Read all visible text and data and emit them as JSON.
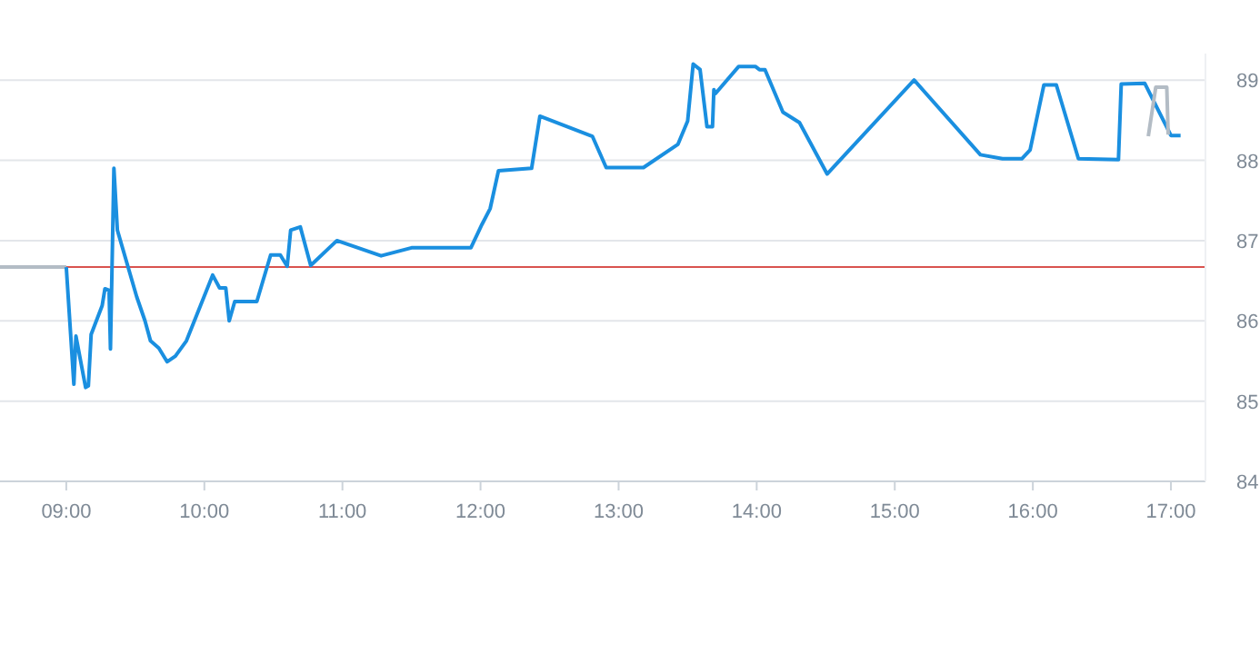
{
  "chart_data": {
    "type": "line",
    "xlim": [
      8.52,
      17.25
    ],
    "ylim": [
      84,
      89.33
    ],
    "xticks": [
      {
        "value": 9,
        "label": "09:00"
      },
      {
        "value": 10,
        "label": "10:00"
      },
      {
        "value": 11,
        "label": "11:00"
      },
      {
        "value": 12,
        "label": "12:00"
      },
      {
        "value": 13,
        "label": "13:00"
      },
      {
        "value": 14,
        "label": "14:00"
      },
      {
        "value": 15,
        "label": "15:00"
      },
      {
        "value": 16,
        "label": "16:00"
      },
      {
        "value": 17,
        "label": "17:00"
      }
    ],
    "yticks": [
      84,
      85,
      86,
      87,
      88,
      89
    ],
    "grid": "y",
    "marker": "none",
    "line_style": "solid",
    "ref_lines": [
      {
        "axis": "y",
        "value": 86.67,
        "color": "#d9534f"
      }
    ],
    "series": [
      {
        "color": "#b3bcc5",
        "x": [
          8.52,
          9.0
        ],
        "values": [
          86.67,
          86.67
        ]
      },
      {
        "color": "#1a8fe0",
        "x": [
          9.0,
          9.055,
          9.07,
          9.14,
          9.16,
          9.18,
          9.26,
          9.28,
          9.31,
          9.32,
          9.345,
          9.37,
          9.51,
          9.57,
          9.61,
          9.67,
          9.73,
          9.79,
          9.87,
          10.06,
          10.11,
          10.155,
          10.18,
          10.22,
          10.38,
          10.48,
          10.55,
          10.6,
          10.625,
          10.695,
          10.77,
          10.96,
          11.28,
          11.5,
          11.93,
          12.01,
          12.07,
          12.13,
          12.37,
          12.43,
          12.81,
          12.91,
          13.18,
          13.43,
          13.5,
          13.54,
          13.59,
          13.64,
          13.68,
          13.69,
          13.7,
          13.87,
          13.99,
          14.02,
          14.06,
          14.19,
          14.31,
          14.51,
          15.14,
          15.62,
          15.78,
          15.92,
          15.98,
          16.08,
          16.17,
          16.33,
          16.62,
          16.64,
          16.81,
          17.0,
          17.07
        ],
        "values": [
          86.67,
          85.21,
          85.81,
          85.17,
          85.19,
          85.83,
          86.19,
          86.4,
          86.38,
          85.65,
          87.9,
          87.13,
          86.3,
          86.0,
          85.75,
          85.66,
          85.49,
          85.56,
          85.75,
          86.57,
          86.41,
          86.41,
          86.0,
          86.24,
          86.24,
          86.82,
          86.82,
          86.68,
          87.13,
          87.17,
          86.69,
          87.0,
          86.81,
          86.91,
          86.91,
          87.2,
          87.4,
          87.87,
          87.9,
          88.55,
          88.3,
          87.91,
          87.91,
          88.2,
          88.49,
          89.2,
          89.13,
          88.42,
          88.42,
          88.88,
          88.83,
          89.17,
          89.17,
          89.13,
          89.13,
          88.6,
          88.47,
          87.83,
          89.0,
          88.07,
          88.02,
          88.02,
          88.13,
          88.94,
          88.94,
          88.02,
          88.01,
          88.95,
          88.96,
          88.31,
          88.31
        ]
      },
      {
        "color": "#b3bcc5",
        "x": [
          16.836,
          16.89,
          16.97,
          16.98
        ],
        "values": [
          88.3,
          88.91,
          88.91,
          88.32
        ]
      }
    ]
  }
}
